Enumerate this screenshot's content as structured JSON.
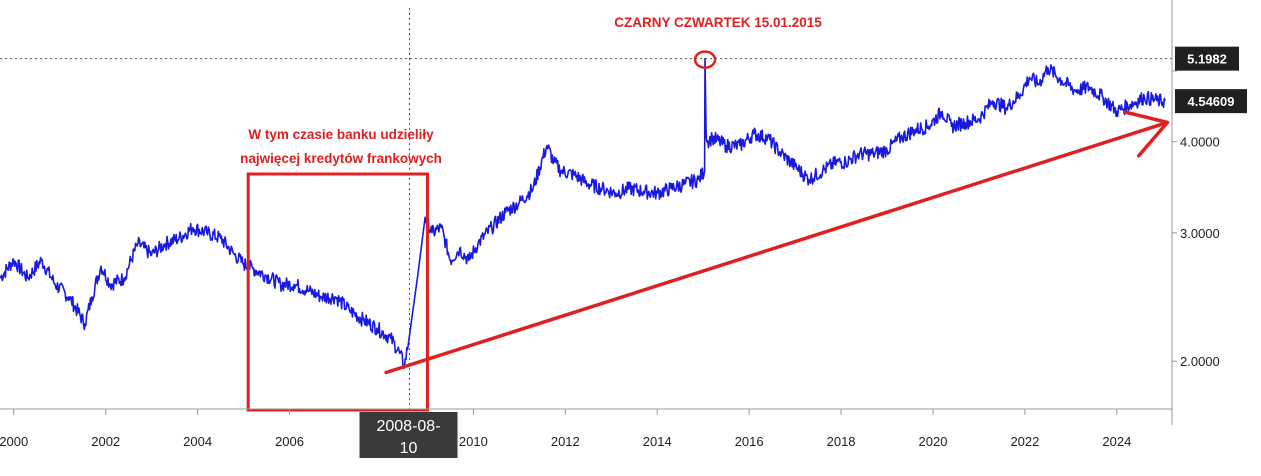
{
  "chart_data": {
    "type": "line",
    "y_scale": "log",
    "ylim": [
      1.72,
      6.1
    ],
    "xlim": [
      1999.7,
      2025.2
    ],
    "colors": {
      "line": "#1a1adf",
      "annotation": "#e02020",
      "tag_bg": "#202020",
      "grid": "#cfcfcf"
    },
    "x_ticks": [
      {
        "value": 2000,
        "label": "2000"
      },
      {
        "value": 2002,
        "label": "2002"
      },
      {
        "value": 2004,
        "label": "2004"
      },
      {
        "value": 2006,
        "label": "2006"
      },
      {
        "value": 2010,
        "label": "2010"
      },
      {
        "value": 2012,
        "label": "2012"
      },
      {
        "value": 2014,
        "label": "2014"
      },
      {
        "value": 2016,
        "label": "2016"
      },
      {
        "value": 2018,
        "label": "2018"
      },
      {
        "value": 2020,
        "label": "2020"
      },
      {
        "value": 2022,
        "label": "2022"
      },
      {
        "value": 2024,
        "label": "2024"
      }
    ],
    "y_ticks": [
      {
        "value": 2.0,
        "label": "2.0000"
      },
      {
        "value": 3.0,
        "label": "3.0000"
      },
      {
        "value": 4.0,
        "label": "4.0000"
      },
      {
        "value": 5.0,
        "label": ""
      }
    ],
    "series": [
      {
        "x": [
          1999.7,
          2000.0,
          2000.3,
          2000.6,
          2000.9,
          2001.2,
          2001.55,
          2001.7,
          2001.9,
          2002.1,
          2002.4,
          2002.7,
          2003.0,
          2003.3,
          2003.6,
          2003.9,
          2004.2,
          2004.5,
          2004.8,
          2005.0,
          2005.2,
          2005.5,
          2005.8,
          2006.1,
          2006.4,
          2006.7,
          2007.0,
          2007.3,
          2007.6,
          2007.9,
          2008.2,
          2008.4,
          2008.5,
          2008.6,
          2008.8,
          2008.95,
          2009.1,
          2009.3,
          2009.5,
          2009.7,
          2009.9,
          2010.1,
          2010.4,
          2010.7,
          2011.0,
          2011.3,
          2011.6,
          2011.75,
          2011.9,
          2012.2,
          2012.5,
          2012.8,
          2013.1,
          2013.4,
          2013.7,
          2014.0,
          2014.3,
          2014.6,
          2014.9,
          2015.03,
          2015.04,
          2015.06,
          2015.08,
          2015.2,
          2015.5,
          2015.8,
          2016.1,
          2016.4,
          2016.7,
          2017.0,
          2017.3,
          2017.6,
          2017.9,
          2018.1,
          2018.4,
          2018.7,
          2019.0,
          2019.3,
          2019.6,
          2019.9,
          2020.2,
          2020.4,
          2020.7,
          2021.0,
          2021.3,
          2021.6,
          2021.9,
          2022.1,
          2022.3,
          2022.5,
          2022.8,
          2023.1,
          2023.4,
          2023.7,
          2024.0,
          2024.3,
          2024.6,
          2024.9,
          2025.05
        ],
        "y": [
          2.6,
          2.75,
          2.6,
          2.75,
          2.55,
          2.45,
          2.25,
          2.45,
          2.7,
          2.55,
          2.6,
          2.9,
          2.8,
          2.9,
          2.95,
          3.05,
          3.0,
          2.95,
          2.8,
          2.72,
          2.68,
          2.62,
          2.55,
          2.55,
          2.5,
          2.45,
          2.45,
          2.35,
          2.28,
          2.22,
          2.15,
          2.05,
          1.97,
          2.15,
          2.65,
          3.15,
          3.0,
          3.05,
          2.75,
          2.85,
          2.75,
          2.9,
          3.05,
          3.2,
          3.3,
          3.45,
          3.95,
          3.75,
          3.65,
          3.6,
          3.5,
          3.45,
          3.4,
          3.45,
          3.42,
          3.4,
          3.45,
          3.5,
          3.55,
          3.65,
          5.1982,
          4.2,
          4.0,
          4.05,
          3.95,
          3.95,
          4.1,
          4.05,
          3.85,
          3.7,
          3.55,
          3.65,
          3.75,
          3.75,
          3.85,
          3.85,
          3.9,
          4.05,
          4.15,
          4.2,
          4.4,
          4.2,
          4.25,
          4.3,
          4.55,
          4.45,
          4.65,
          4.9,
          4.8,
          5.05,
          4.85,
          4.7,
          4.75,
          4.6,
          4.4,
          4.5,
          4.6,
          4.55,
          4.54609
        ]
      }
    ],
    "annotations": {
      "black_thursday": "CZARNY CZWARTEK 15.01.2015",
      "banks_note_line1": "W tym czasie banku udzieliły",
      "banks_note_line2": "najwięcej kredytów frankowych"
    },
    "highlight_range": [
      2005.1,
      2009.0
    ],
    "arrow_from": {
      "x": 2008.1,
      "y": 1.93
    },
    "arrow_to": {
      "x": 2025.1,
      "y": 4.25
    },
    "spike": {
      "x": 2015.04,
      "y": 5.1982
    },
    "crosshair_x": 2008.61,
    "price_tags": {
      "high": "5.1982",
      "last": "4.54609"
    },
    "x_cursor_label_line1": "2008-08-",
    "x_cursor_label_line2": "10"
  }
}
